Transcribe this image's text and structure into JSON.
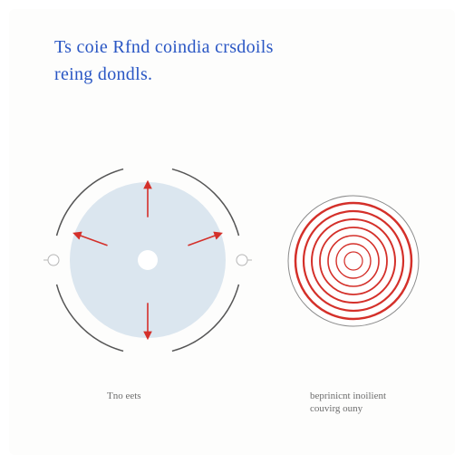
{
  "title": {
    "line1": "Ts coie Rfnd coindia crsdoils",
    "line2": "reing dondls.",
    "color": "#2956c4",
    "fontsize": 20
  },
  "background_color": "#fdfdfc",
  "left_diagram": {
    "type": "infographic",
    "disc_fill": "#dbe6ef",
    "disc_radius": 86,
    "inner_hole_radius": 11,
    "inner_hole_fill": "#ffffff",
    "arrow_color": "#d4302a",
    "arrow_count": 4,
    "arc_segments": {
      "count": 4,
      "stroke": "#555555",
      "stroke_width": 1.5,
      "radius": 104,
      "gap_deg": 30
    },
    "marker": {
      "fill": "#ffffff",
      "stroke": "#b6b6b6",
      "radius": 6
    },
    "caption": "Tno eets"
  },
  "right_diagram": {
    "type": "infographic",
    "rings": [
      {
        "r": 64,
        "stroke": "#d4302a",
        "width": 2.5
      },
      {
        "r": 55,
        "stroke": "#d4302a",
        "width": 2.2
      },
      {
        "r": 46,
        "stroke": "#d4302a",
        "width": 2
      },
      {
        "r": 37,
        "stroke": "#d4302a",
        "width": 1.8
      },
      {
        "r": 28,
        "stroke": "#d4302a",
        "width": 1.6
      },
      {
        "r": 19,
        "stroke": "#d4302a",
        "width": 1.4
      },
      {
        "r": 10,
        "stroke": "#d4302a",
        "width": 1.2
      }
    ],
    "outline_stroke": "#8a8a8a",
    "outline_radius": 72,
    "outline_width": 1,
    "background_fill": "#ffffff",
    "caption": "beprinicnt inoilient couvirg ouny"
  }
}
